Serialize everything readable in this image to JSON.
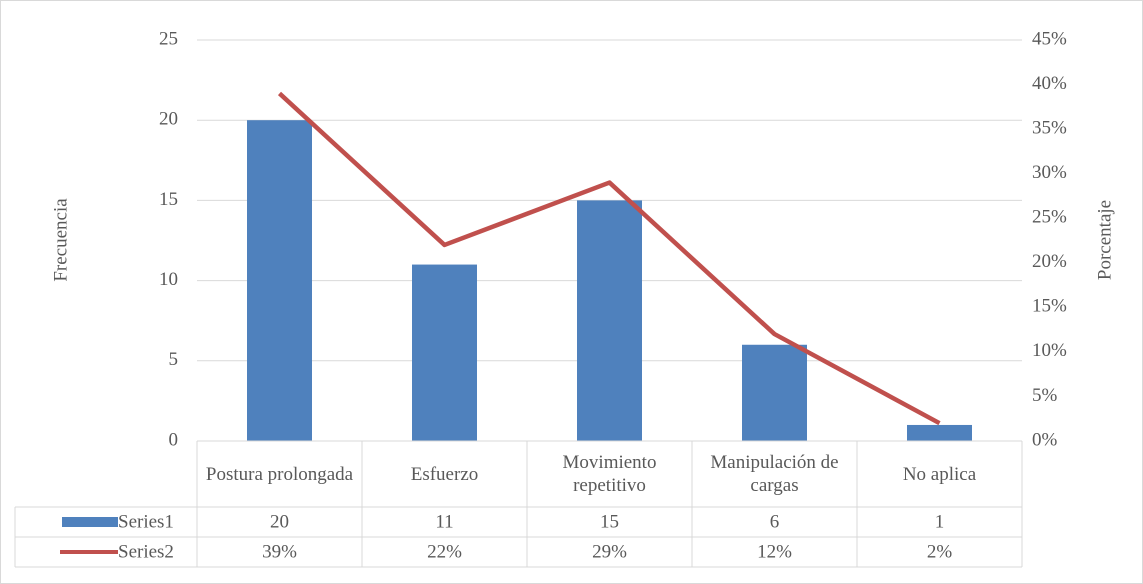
{
  "chart_data": {
    "type": "bar-line",
    "categories": [
      "Postura prolongada",
      "Esfuerzo",
      "Movimiento repetitivo",
      "Manipulación de cargas",
      "No aplica"
    ],
    "series": [
      {
        "name": "Series1",
        "color": "#4f81bd",
        "type": "bar",
        "values": [
          20,
          11,
          15,
          6,
          1
        ]
      },
      {
        "name": "Series2",
        "color": "#c0504d",
        "type": "line",
        "axis": "y2",
        "values": [
          39,
          22,
          29,
          12,
          2
        ],
        "value_labels": [
          "39%",
          "22%",
          "29%",
          "12%",
          "2%"
        ]
      }
    ],
    "y_label": "Frecuencia",
    "y2_label": "Porcentaje",
    "ylim": [
      0,
      25
    ],
    "yticks": [
      0,
      5,
      10,
      15,
      20,
      25
    ],
    "y2lim": [
      0,
      45
    ],
    "y2ticks": [
      {
        "value": 0,
        "label": "0%"
      },
      {
        "value": 5,
        "label": "5%"
      },
      {
        "value": 10,
        "label": "10%"
      },
      {
        "value": 15,
        "label": "15%"
      },
      {
        "value": 20,
        "label": "20%"
      },
      {
        "value": 25,
        "label": "25%"
      },
      {
        "value": 30,
        "label": "30%"
      },
      {
        "value": 35,
        "label": "35%"
      },
      {
        "value": 40,
        "label": "40%"
      },
      {
        "value": 45,
        "label": "45%"
      }
    ],
    "grid": true
  }
}
